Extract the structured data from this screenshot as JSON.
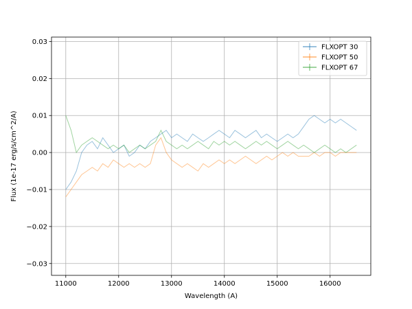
{
  "chart_data": {
    "type": "line",
    "xlabel": "Wavelength (A)",
    "ylabel": "Flux (1e-17 erg/s/cm^2/A)",
    "xlim": [
      10730,
      16770
    ],
    "ylim": [
      -0.0332,
      0.0312
    ],
    "xticks": [
      11000,
      12000,
      13000,
      14000,
      15000,
      16000
    ],
    "xtick_labels": [
      "11000",
      "12000",
      "13000",
      "14000",
      "15000",
      "16000"
    ],
    "yticks": [
      -0.03,
      -0.02,
      -0.01,
      0.0,
      0.01,
      0.02,
      0.03
    ],
    "ytick_labels": [
      "−0.03",
      "−0.02",
      "−0.01",
      "0.00",
      "0.01",
      "0.02",
      "0.03"
    ],
    "grid": true,
    "legend_position": "top-right",
    "series": [
      {
        "name": "FLXOPT 30",
        "color": "#1f77b4",
        "x": [
          11000,
          11100,
          11200,
          11300,
          11400,
          11500,
          11600,
          11700,
          11800,
          11900,
          12000,
          12100,
          12200,
          12300,
          12400,
          12500,
          12600,
          12700,
          12800,
          12900,
          13000,
          13100,
          13200,
          13300,
          13400,
          13500,
          13600,
          13700,
          13800,
          13900,
          14000,
          14100,
          14200,
          14300,
          14400,
          14500,
          14600,
          14700,
          14800,
          14900,
          15000,
          15100,
          15200,
          15300,
          15400,
          15500,
          15600,
          15700,
          15800,
          15900,
          16000,
          16100,
          16200,
          16300,
          16400,
          16500
        ],
        "y": [
          -0.01,
          -0.008,
          -0.005,
          0.0,
          0.002,
          0.003,
          0.001,
          0.004,
          0.002,
          0.0,
          0.001,
          0.002,
          -0.001,
          0.0,
          0.002,
          0.001,
          0.003,
          0.004,
          0.005,
          0.006,
          0.004,
          0.005,
          0.004,
          0.003,
          0.005,
          0.004,
          0.003,
          0.004,
          0.005,
          0.006,
          0.005,
          0.004,
          0.006,
          0.005,
          0.004,
          0.005,
          0.006,
          0.004,
          0.005,
          0.004,
          0.003,
          0.004,
          0.005,
          0.004,
          0.005,
          0.007,
          0.009,
          0.01,
          0.009,
          0.008,
          0.009,
          0.008,
          0.009,
          0.008,
          0.007,
          0.006
        ]
      },
      {
        "name": "FLXOPT 50",
        "color": "#ff7f0e",
        "x": [
          11000,
          11100,
          11200,
          11300,
          11400,
          11500,
          11600,
          11700,
          11800,
          11900,
          12000,
          12100,
          12200,
          12300,
          12400,
          12500,
          12600,
          12700,
          12800,
          12900,
          13000,
          13100,
          13200,
          13300,
          13400,
          13500,
          13600,
          13700,
          13800,
          13900,
          14000,
          14100,
          14200,
          14300,
          14400,
          14500,
          14600,
          14700,
          14800,
          14900,
          15000,
          15100,
          15200,
          15300,
          15400,
          15500,
          15600,
          15700,
          15800,
          15900,
          16000,
          16100,
          16200,
          16300,
          16400,
          16500
        ],
        "y": [
          -0.012,
          -0.01,
          -0.008,
          -0.006,
          -0.005,
          -0.004,
          -0.005,
          -0.003,
          -0.004,
          -0.002,
          -0.003,
          -0.004,
          -0.003,
          -0.004,
          -0.003,
          -0.004,
          -0.003,
          0.002,
          0.004,
          0.0,
          -0.002,
          -0.003,
          -0.004,
          -0.003,
          -0.004,
          -0.005,
          -0.003,
          -0.004,
          -0.003,
          -0.002,
          -0.003,
          -0.002,
          -0.003,
          -0.002,
          -0.001,
          -0.002,
          -0.003,
          -0.002,
          -0.001,
          -0.002,
          -0.001,
          0.0,
          -0.001,
          0.0,
          -0.001,
          -0.001,
          -0.001,
          0.0,
          -0.001,
          0.0,
          0.0,
          -0.001,
          0.0,
          0.0,
          0.0,
          0.0
        ]
      },
      {
        "name": "FLXOPT 67",
        "color": "#2ca02c",
        "x": [
          11000,
          11100,
          11200,
          11300,
          11400,
          11500,
          11600,
          11700,
          11800,
          11900,
          12000,
          12100,
          12200,
          12300,
          12400,
          12500,
          12600,
          12700,
          12800,
          12900,
          13000,
          13100,
          13200,
          13300,
          13400,
          13500,
          13600,
          13700,
          13800,
          13900,
          14000,
          14100,
          14200,
          14300,
          14400,
          14500,
          14600,
          14700,
          14800,
          14900,
          15000,
          15100,
          15200,
          15300,
          15400,
          15500,
          15600,
          15700,
          15800,
          15900,
          16000,
          16100,
          16200,
          16300,
          16400,
          16500
        ],
        "y": [
          0.01,
          0.006,
          0.0,
          0.002,
          0.003,
          0.004,
          0.003,
          0.002,
          0.001,
          0.002,
          0.001,
          0.002,
          0.0,
          0.001,
          0.002,
          0.001,
          0.002,
          0.003,
          0.006,
          0.003,
          0.002,
          0.001,
          0.002,
          0.001,
          0.002,
          0.003,
          0.002,
          0.001,
          0.003,
          0.002,
          0.003,
          0.002,
          0.003,
          0.002,
          0.001,
          0.002,
          0.003,
          0.002,
          0.003,
          0.002,
          0.001,
          0.002,
          0.003,
          0.002,
          0.001,
          0.002,
          0.001,
          0.0,
          0.001,
          0.002,
          0.001,
          0.0,
          0.001,
          0.0,
          0.001,
          0.002
        ]
      }
    ]
  }
}
